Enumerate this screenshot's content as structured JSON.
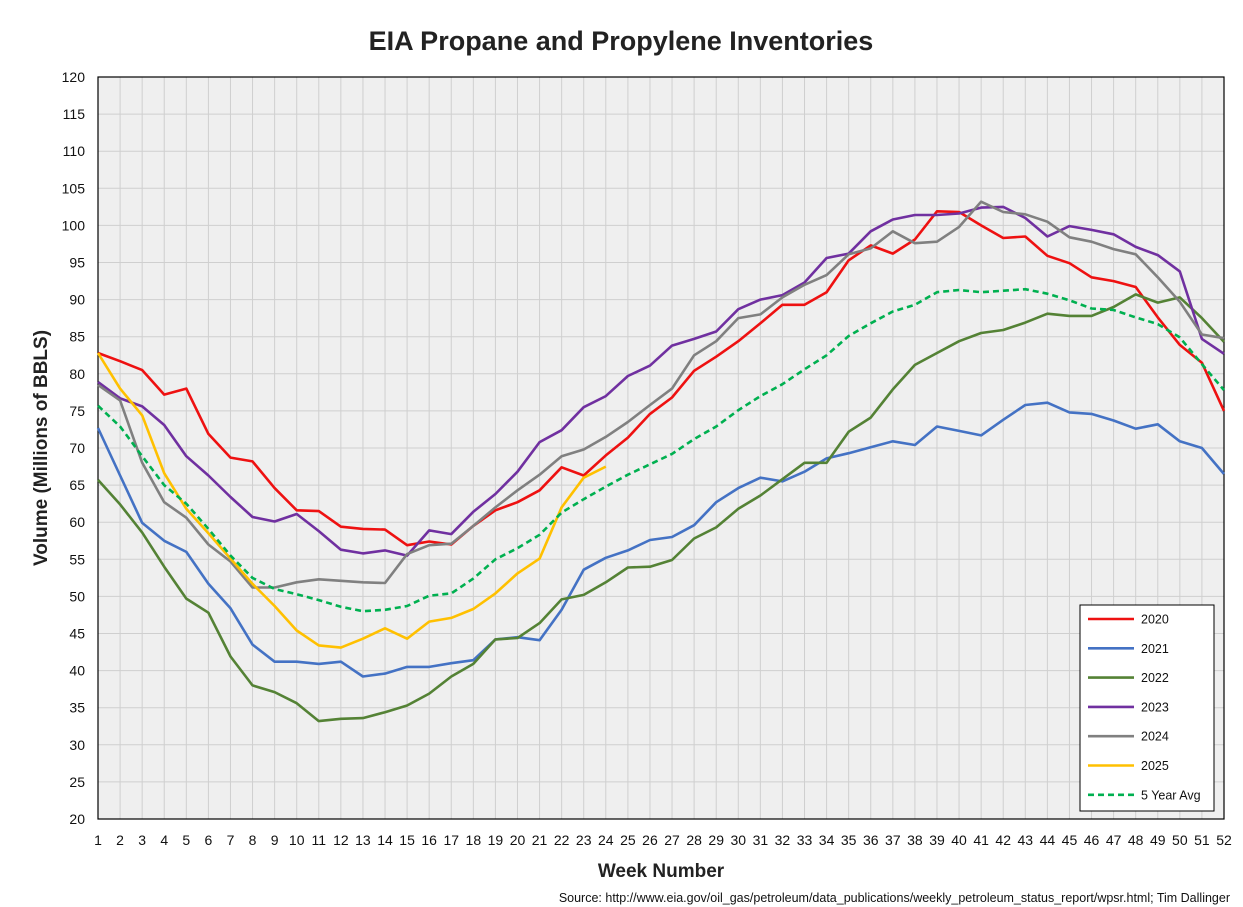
{
  "chart_data": {
    "type": "line",
    "title": "EIA Propane and Propylene Inventories",
    "xlabel": "Week Number",
    "ylabel": "Volume (Millions of BBLS)",
    "source": "Source: http://www.eia.gov/oil_gas/petroleum/data_publications/weekly_petroleum_status_report/wpsr.html; Tim Dallinger",
    "xlim": [
      1,
      52
    ],
    "ylim": [
      20,
      120
    ],
    "ytick_step": 5,
    "grid": true,
    "legend_position": "bottom-right",
    "x": [
      1,
      2,
      3,
      4,
      5,
      6,
      7,
      8,
      9,
      10,
      11,
      12,
      13,
      14,
      15,
      16,
      17,
      18,
      19,
      20,
      21,
      22,
      23,
      24,
      25,
      26,
      27,
      28,
      29,
      30,
      31,
      32,
      33,
      34,
      35,
      36,
      37,
      38,
      39,
      40,
      41,
      42,
      43,
      44,
      45,
      46,
      47,
      48,
      49,
      50,
      51,
      52
    ],
    "series": [
      {
        "name": "2020",
        "color": "#ee1111",
        "dash": false,
        "values": [
          82.8,
          81.7,
          80.5,
          77.2,
          78.0,
          71.9,
          68.7,
          68.2,
          64.6,
          61.6,
          61.5,
          59.4,
          59.1,
          59.0,
          56.9,
          57.4,
          57.0,
          59.5,
          61.6,
          62.7,
          64.3,
          67.4,
          66.3,
          69.0,
          71.4,
          74.6,
          76.8,
          80.4,
          82.3,
          84.4,
          86.8,
          89.3,
          89.3,
          91.0,
          95.3,
          97.3,
          96.2,
          98.1,
          101.9,
          101.8,
          100.0,
          98.3,
          98.5,
          95.9,
          94.9,
          93.0,
          92.5,
          91.7,
          87.6,
          83.9,
          81.5,
          75.0
        ]
      },
      {
        "name": "2021",
        "color": "#4472c4",
        "dash": false,
        "values": [
          72.7,
          66.3,
          59.9,
          57.5,
          56.0,
          51.7,
          48.4,
          43.5,
          41.2,
          41.2,
          40.9,
          41.2,
          39.2,
          39.6,
          40.5,
          40.5,
          41.0,
          41.4,
          44.2,
          44.5,
          44.1,
          48.2,
          53.6,
          55.2,
          56.2,
          57.6,
          58.0,
          59.6,
          62.7,
          64.6,
          66.0,
          65.5,
          66.8,
          68.6,
          69.3,
          70.1,
          70.9,
          70.4,
          72.9,
          72.3,
          71.7,
          73.8,
          75.8,
          76.1,
          74.8,
          74.6,
          73.7,
          72.6,
          73.2,
          70.9,
          70.0,
          66.5
        ]
      },
      {
        "name": "2022",
        "color": "#548235",
        "dash": false,
        "values": [
          65.7,
          62.4,
          58.6,
          54.0,
          49.7,
          47.8,
          41.9,
          38.0,
          37.1,
          35.6,
          33.2,
          33.5,
          33.6,
          34.4,
          35.3,
          36.9,
          39.2,
          40.9,
          44.2,
          44.4,
          46.4,
          49.6,
          50.2,
          51.9,
          53.9,
          54.0,
          54.9,
          57.8,
          59.3,
          61.8,
          63.6,
          65.8,
          68.0,
          68.0,
          72.2,
          74.1,
          77.9,
          81.2,
          82.8,
          84.4,
          85.5,
          85.9,
          86.9,
          88.1,
          87.8,
          87.8,
          89.0,
          90.7,
          89.6,
          90.3,
          87.5,
          84.3
        ]
      },
      {
        "name": "2023",
        "color": "#7030a0",
        "dash": false,
        "values": [
          78.9,
          76.7,
          75.6,
          73.1,
          68.9,
          66.3,
          63.4,
          60.7,
          60.1,
          61.1,
          58.8,
          56.3,
          55.8,
          56.2,
          55.5,
          58.9,
          58.4,
          61.4,
          63.8,
          66.8,
          70.8,
          72.4,
          75.5,
          77.0,
          79.7,
          81.1,
          83.8,
          84.7,
          85.7,
          88.7,
          90.0,
          90.6,
          92.3,
          95.6,
          96.2,
          99.2,
          100.8,
          101.4,
          101.4,
          101.6,
          102.4,
          102.5,
          101.0,
          98.5,
          99.9,
          99.4,
          98.8,
          97.1,
          96.0,
          93.8,
          84.7,
          82.7
        ]
      },
      {
        "name": "2024",
        "color": "#808080",
        "dash": false,
        "values": [
          78.5,
          76.4,
          68.0,
          62.7,
          60.6,
          57.0,
          54.7,
          51.2,
          51.2,
          51.9,
          52.3,
          52.1,
          51.9,
          51.8,
          55.7,
          56.9,
          57.1,
          59.5,
          62.0,
          64.3,
          66.4,
          68.9,
          69.8,
          71.5,
          73.5,
          75.8,
          78.0,
          82.5,
          84.4,
          87.5,
          88.0,
          90.3,
          92.0,
          93.3,
          96.1,
          96.9,
          99.2,
          97.6,
          97.8,
          99.8,
          103.2,
          101.8,
          101.5,
          100.5,
          98.4,
          97.8,
          96.8,
          96.1,
          93.0,
          89.7,
          85.3,
          84.8
        ]
      },
      {
        "name": "2025",
        "color": "#ffc000",
        "dash": false,
        "values": [
          82.8,
          78.0,
          74.4,
          66.6,
          61.8,
          58.5,
          55.1,
          51.7,
          48.7,
          45.4,
          43.4,
          43.1,
          44.3,
          45.7,
          44.3,
          46.6,
          47.1,
          48.3,
          50.4,
          53.1,
          55.1,
          62.0,
          66.0,
          67.5,
          null,
          null,
          null,
          null,
          null,
          null,
          null,
          null,
          null,
          null,
          null,
          null,
          null,
          null,
          null,
          null,
          null,
          null,
          null,
          null,
          null,
          null,
          null,
          null,
          null,
          null,
          null,
          null
        ]
      },
      {
        "name": "5 Year Avg",
        "color": "#00b050",
        "dash": true,
        "values": [
          75.7,
          72.9,
          68.9,
          65.0,
          62.5,
          59.1,
          55.5,
          52.5,
          51.0,
          50.3,
          49.5,
          48.6,
          48.0,
          48.2,
          48.7,
          50.1,
          50.4,
          52.4,
          55.0,
          56.5,
          58.3,
          61.3,
          63.1,
          64.8,
          66.4,
          67.8,
          69.2,
          71.2,
          72.9,
          75.1,
          77.0,
          78.6,
          80.6,
          82.5,
          85.1,
          86.8,
          88.4,
          89.3,
          91.0,
          91.3,
          91.0,
          91.2,
          91.4,
          90.8,
          89.9,
          88.8,
          88.6,
          87.6,
          86.7,
          84.9,
          81.3,
          77.8
        ]
      }
    ]
  }
}
